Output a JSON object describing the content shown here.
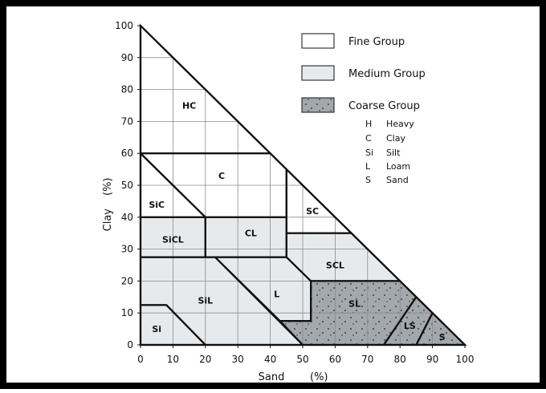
{
  "chart_data": {
    "type": "ternary-texture-diagram",
    "xlabel": "Sand",
    "x_unit": "(%)",
    "ylabel": "Clay",
    "y_unit": "(%)",
    "x_ticks": [
      "0",
      "10",
      "20",
      "30",
      "40",
      "50",
      "60",
      "70",
      "80",
      "90",
      "100"
    ],
    "y_ticks": [
      "0",
      "10",
      "20",
      "30",
      "40",
      "50",
      "60",
      "70",
      "80",
      "90",
      "100"
    ],
    "xlim": [
      0,
      100
    ],
    "ylim": [
      0,
      100
    ],
    "grid": true,
    "classes": [
      {
        "code": "HC",
        "group": "fine",
        "polygon": [
          [
            0,
            100
          ],
          [
            0,
            60
          ],
          [
            40,
            60
          ]
        ],
        "label_at": [
          15,
          75
        ]
      },
      {
        "code": "C",
        "group": "fine",
        "polygon": [
          [
            0,
            60
          ],
          [
            40,
            60
          ],
          [
            45,
            55
          ],
          [
            45,
            40
          ],
          [
            20,
            40
          ]
        ],
        "label_at": [
          25,
          53
        ]
      },
      {
        "code": "SiC",
        "group": "fine",
        "polygon": [
          [
            0,
            60
          ],
          [
            20,
            40
          ],
          [
            0,
            40
          ]
        ],
        "label_at": [
          5,
          44
        ]
      },
      {
        "code": "SC",
        "group": "fine",
        "polygon": [
          [
            45,
            55
          ],
          [
            45,
            35
          ],
          [
            65,
            35
          ]
        ],
        "label_at": [
          53,
          42
        ]
      },
      {
        "code": "SiCL",
        "group": "medium",
        "polygon": [
          [
            0,
            40
          ],
          [
            20,
            40
          ],
          [
            20,
            27.5
          ],
          [
            0,
            27.5
          ]
        ],
        "label_at": [
          10,
          33
        ]
      },
      {
        "code": "CL",
        "group": "medium",
        "polygon": [
          [
            20,
            40
          ],
          [
            45,
            40
          ],
          [
            45,
            27.5
          ],
          [
            20,
            27.5
          ]
        ],
        "label_at": [
          34,
          35
        ]
      },
      {
        "code": "SCL",
        "group": "medium",
        "polygon": [
          [
            45,
            35
          ],
          [
            65,
            35
          ],
          [
            80,
            20
          ],
          [
            52.5,
            20
          ],
          [
            45,
            27.5
          ]
        ],
        "label_at": [
          60,
          25
        ]
      },
      {
        "code": "SiL",
        "group": "medium",
        "polygon": [
          [
            0,
            27.5
          ],
          [
            23,
            27.5
          ],
          [
            50,
            0
          ],
          [
            20,
            0
          ],
          [
            8,
            12.5
          ],
          [
            0,
            12.5
          ]
        ],
        "label_at": [
          20,
          14
        ]
      },
      {
        "code": "L",
        "group": "medium",
        "polygon": [
          [
            23,
            27.5
          ],
          [
            45,
            27.5
          ],
          [
            52.5,
            20
          ],
          [
            52.5,
            7.5
          ],
          [
            43,
            7.5
          ]
        ],
        "label_at": [
          42,
          16
        ]
      },
      {
        "code": "Si",
        "group": "medium",
        "polygon": [
          [
            0,
            12.5
          ],
          [
            8,
            12.5
          ],
          [
            20,
            0
          ],
          [
            0,
            0
          ]
        ],
        "label_at": [
          5,
          5
        ]
      },
      {
        "code": "SL",
        "group": "coarse",
        "polygon": [
          [
            52.5,
            20
          ],
          [
            80,
            20
          ],
          [
            85,
            15
          ],
          [
            75,
            0
          ],
          [
            50,
            0
          ],
          [
            43,
            7.5
          ],
          [
            52.5,
            7.5
          ]
        ],
        "label_at": [
          66,
          13
        ]
      },
      {
        "code": "LS",
        "group": "coarse",
        "polygon": [
          [
            85,
            15
          ],
          [
            90,
            10
          ],
          [
            85,
            0
          ],
          [
            75,
            0
          ]
        ],
        "label_at": [
          83,
          6
        ]
      },
      {
        "code": "S",
        "group": "coarse",
        "polygon": [
          [
            90,
            10
          ],
          [
            100,
            0
          ],
          [
            85,
            0
          ]
        ],
        "label_at": [
          93,
          2.5
        ]
      }
    ]
  },
  "legend": [
    {
      "label": "Fine Group",
      "swatch": "fine"
    },
    {
      "label": "Medium Group",
      "swatch": "medium"
    },
    {
      "label": "Coarse Group",
      "swatch": "coarse"
    }
  ],
  "abbreviations": [
    {
      "code": "H",
      "meaning": "Heavy"
    },
    {
      "code": "C",
      "meaning": "Clay"
    },
    {
      "code": "Si",
      "meaning": "Silt"
    },
    {
      "code": "L",
      "meaning": "Loam"
    },
    {
      "code": "S",
      "meaning": "Sand"
    }
  ],
  "colors": {
    "fine": "#ffffff",
    "medium": "#e7eaec",
    "coarse": "#a3a8ac",
    "line": "#111111",
    "grid": "#8a8a8a",
    "frame": "#000000"
  }
}
